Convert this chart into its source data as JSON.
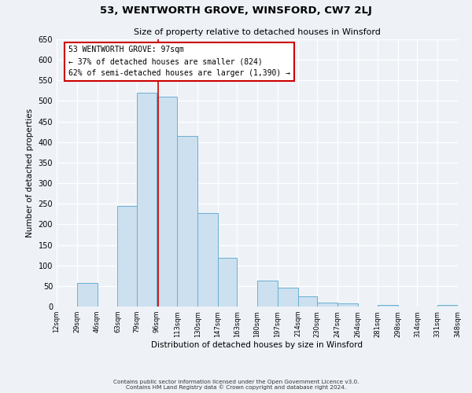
{
  "title1": "53, WENTWORTH GROVE, WINSFORD, CW7 2LJ",
  "title2": "Size of property relative to detached houses in Winsford",
  "xlabel": "Distribution of detached houses by size in Winsford",
  "ylabel": "Number of detached properties",
  "bin_edges": [
    12,
    29,
    46,
    63,
    79,
    96,
    113,
    130,
    147,
    163,
    180,
    197,
    214,
    230,
    247,
    264,
    281,
    298,
    314,
    331,
    348
  ],
  "bin_labels": [
    "12sqm",
    "29sqm",
    "46sqm",
    "63sqm",
    "79sqm",
    "96sqm",
    "113sqm",
    "130sqm",
    "147sqm",
    "163sqm",
    "180sqm",
    "197sqm",
    "214sqm",
    "230sqm",
    "247sqm",
    "264sqm",
    "281sqm",
    "298sqm",
    "314sqm",
    "331sqm",
    "348sqm"
  ],
  "heights": [
    0,
    57,
    0,
    245,
    520,
    510,
    415,
    228,
    118,
    0,
    63,
    46,
    24,
    10,
    8,
    0,
    3,
    0,
    0,
    3
  ],
  "bar_color": "#cce0ef",
  "bar_edge_color": "#6aafd4",
  "property_value": 97,
  "property_line_color": "#cc0000",
  "annotation_title": "53 WENTWORTH GROVE: 97sqm",
  "annotation_line1": "← 37% of detached houses are smaller (824)",
  "annotation_line2": "62% of semi-detached houses are larger (1,390) →",
  "annotation_box_color": "#ffffff",
  "annotation_box_edge": "#cc0000",
  "ylim": [
    0,
    650
  ],
  "yticks": [
    0,
    50,
    100,
    150,
    200,
    250,
    300,
    350,
    400,
    450,
    500,
    550,
    600,
    650
  ],
  "footer1": "Contains HM Land Registry data © Crown copyright and database right 2024.",
  "footer2": "Contains public sector information licensed under the Open Government Licence v3.0.",
  "background_color": "#eef2f7"
}
